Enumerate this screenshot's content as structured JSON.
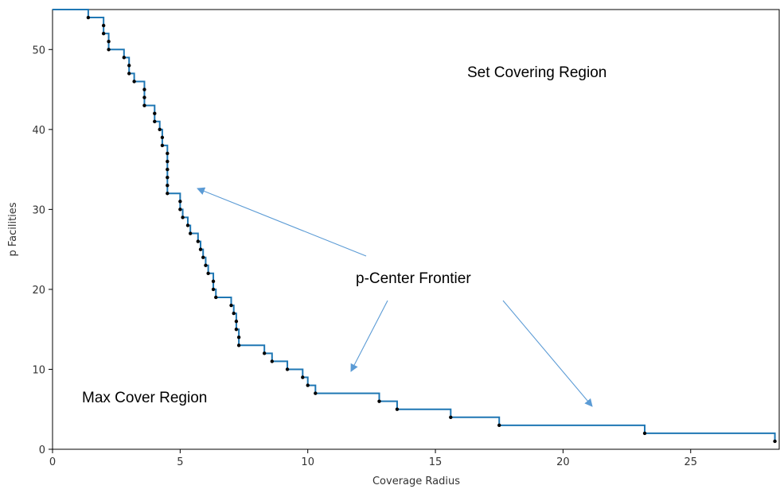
{
  "chart_data": {
    "type": "line",
    "title": "",
    "xlabel": "Coverage Radius",
    "ylabel": "p Facilities",
    "xlim": [
      0,
      28.5
    ],
    "ylim": [
      0,
      55
    ],
    "x_ticks": [
      0,
      5,
      10,
      15,
      20,
      25
    ],
    "y_ticks": [
      0,
      10,
      20,
      30,
      40,
      50
    ],
    "grid": false,
    "step": "post",
    "line_color": "#1f77b4",
    "marker_color": "#000000",
    "arrow_color": "#5b9bd5",
    "series": [
      {
        "points": [
          [
            0,
            55
          ],
          [
            1.4,
            54
          ],
          [
            2.0,
            53
          ],
          [
            2.0,
            52
          ],
          [
            2.2,
            51
          ],
          [
            2.2,
            50
          ],
          [
            2.8,
            49
          ],
          [
            3.0,
            48
          ],
          [
            3.0,
            47
          ],
          [
            3.2,
            46
          ],
          [
            3.6,
            45
          ],
          [
            3.6,
            44
          ],
          [
            3.6,
            43
          ],
          [
            4.0,
            42
          ],
          [
            4.0,
            41
          ],
          [
            4.2,
            40
          ],
          [
            4.3,
            39
          ],
          [
            4.3,
            38
          ],
          [
            4.5,
            37
          ],
          [
            4.5,
            36
          ],
          [
            4.5,
            35
          ],
          [
            4.5,
            34
          ],
          [
            4.5,
            33
          ],
          [
            4.5,
            32
          ],
          [
            5.0,
            31
          ],
          [
            5.0,
            30
          ],
          [
            5.1,
            29
          ],
          [
            5.3,
            28
          ],
          [
            5.4,
            27
          ],
          [
            5.7,
            26
          ],
          [
            5.8,
            25
          ],
          [
            5.9,
            24
          ],
          [
            6.0,
            23
          ],
          [
            6.1,
            22
          ],
          [
            6.3,
            21
          ],
          [
            6.3,
            20
          ],
          [
            6.4,
            19
          ],
          [
            7.0,
            18
          ],
          [
            7.1,
            17
          ],
          [
            7.2,
            16
          ],
          [
            7.2,
            15
          ],
          [
            7.3,
            14
          ],
          [
            7.3,
            13
          ],
          [
            8.3,
            12
          ],
          [
            8.6,
            11
          ],
          [
            9.2,
            10
          ],
          [
            9.8,
            9
          ],
          [
            10.0,
            8
          ],
          [
            10.3,
            7
          ],
          [
            12.8,
            6
          ],
          [
            13.5,
            5
          ],
          [
            15.6,
            4
          ],
          [
            17.5,
            3
          ],
          [
            23.2,
            2
          ],
          [
            28.3,
            1
          ]
        ]
      }
    ],
    "annotations": [
      {
        "key": "set_covering",
        "text": "Set Covering Region"
      },
      {
        "key": "p_center",
        "text": "p-Center Frontier"
      },
      {
        "key": "max_cover",
        "text": "Max Cover Region"
      }
    ]
  }
}
